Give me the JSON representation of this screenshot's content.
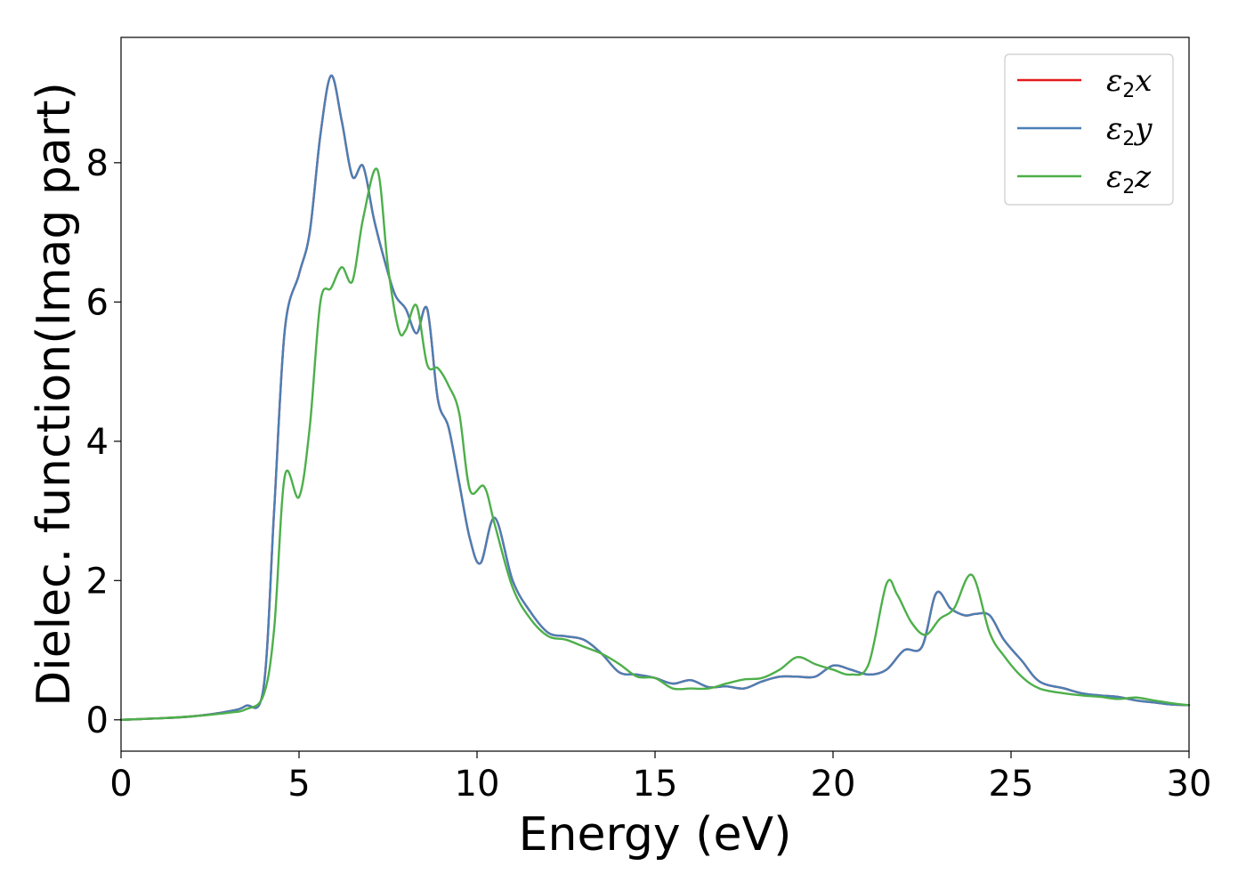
{
  "chart_data": {
    "type": "line",
    "title": "",
    "xlabel": "Energy (eV)",
    "ylabel": "Dielec. function(Imag part)",
    "xlim": [
      0,
      30
    ],
    "ylim": [
      -0.45,
      9.8
    ],
    "xticks": [
      0,
      5,
      10,
      15,
      20,
      25,
      30
    ],
    "yticks": [
      0,
      2,
      4,
      6,
      8
    ],
    "grid": false,
    "legend_position": "top-right",
    "series": [
      {
        "name": "ε2x",
        "name_base": "ε",
        "name_sub": "2",
        "name_var": "x",
        "color": "#e41a1c",
        "x": [
          0,
          1,
          2,
          3,
          3.5,
          4,
          4.3,
          4.6,
          5,
          5.3,
          5.6,
          5.9,
          6.2,
          6.5,
          6.8,
          7.1,
          7.4,
          7.7,
          8,
          8.3,
          8.6,
          8.9,
          9.2,
          9.5,
          9.8,
          10.1,
          10.5,
          11,
          11.5,
          12,
          12.5,
          13,
          13.5,
          14,
          14.5,
          15,
          15.5,
          16,
          16.5,
          17,
          17.5,
          18,
          18.5,
          19,
          19.5,
          20,
          20.5,
          21,
          21.5,
          22,
          22.5,
          22.9,
          23.3,
          23.7,
          24,
          24.4,
          24.8,
          25.3,
          25.8,
          26.5,
          27,
          27.5,
          28,
          28.5,
          29,
          29.5,
          30
        ],
        "y": [
          0,
          0.02,
          0.05,
          0.12,
          0.2,
          0.45,
          3.0,
          5.6,
          6.4,
          7.0,
          8.4,
          9.25,
          8.6,
          7.8,
          7.95,
          7.2,
          6.6,
          6.1,
          5.9,
          5.55,
          5.9,
          4.6,
          4.2,
          3.4,
          2.6,
          2.25,
          2.9,
          2.0,
          1.55,
          1.25,
          1.2,
          1.15,
          0.95,
          0.68,
          0.65,
          0.6,
          0.52,
          0.57,
          0.47,
          0.48,
          0.45,
          0.55,
          0.62,
          0.62,
          0.62,
          0.78,
          0.72,
          0.65,
          0.72,
          1.0,
          1.05,
          1.82,
          1.6,
          1.5,
          1.52,
          1.5,
          1.15,
          0.85,
          0.55,
          0.45,
          0.38,
          0.35,
          0.33,
          0.28,
          0.25,
          0.22,
          0.21
        ]
      },
      {
        "name": "ε2y",
        "name_base": "ε",
        "name_sub": "2",
        "name_var": "y",
        "color": "#4a7fb5",
        "x": [
          0,
          1,
          2,
          3,
          3.5,
          4,
          4.3,
          4.6,
          5,
          5.3,
          5.6,
          5.9,
          6.2,
          6.5,
          6.8,
          7.1,
          7.4,
          7.7,
          8,
          8.3,
          8.6,
          8.9,
          9.2,
          9.5,
          9.8,
          10.1,
          10.5,
          11,
          11.5,
          12,
          12.5,
          13,
          13.5,
          14,
          14.5,
          15,
          15.5,
          16,
          16.5,
          17,
          17.5,
          18,
          18.5,
          19,
          19.5,
          20,
          20.5,
          21,
          21.5,
          22,
          22.5,
          22.9,
          23.3,
          23.7,
          24,
          24.4,
          24.8,
          25.3,
          25.8,
          26.5,
          27,
          27.5,
          28,
          28.5,
          29,
          29.5,
          30
        ],
        "y": [
          0,
          0.02,
          0.05,
          0.12,
          0.2,
          0.45,
          3.0,
          5.6,
          6.4,
          7.0,
          8.4,
          9.25,
          8.6,
          7.8,
          7.95,
          7.2,
          6.6,
          6.1,
          5.9,
          5.55,
          5.9,
          4.6,
          4.2,
          3.4,
          2.6,
          2.25,
          2.9,
          2.0,
          1.55,
          1.25,
          1.2,
          1.15,
          0.95,
          0.68,
          0.65,
          0.6,
          0.52,
          0.57,
          0.47,
          0.48,
          0.45,
          0.55,
          0.62,
          0.62,
          0.62,
          0.78,
          0.72,
          0.65,
          0.72,
          1.0,
          1.05,
          1.82,
          1.6,
          1.5,
          1.52,
          1.5,
          1.15,
          0.85,
          0.55,
          0.45,
          0.38,
          0.35,
          0.33,
          0.28,
          0.25,
          0.22,
          0.21
        ]
      },
      {
        "name": "ε2z",
        "name_base": "ε",
        "name_sub": "2",
        "name_var": "z",
        "color": "#4daf4a",
        "x": [
          0,
          1,
          2,
          3,
          3.5,
          4,
          4.3,
          4.6,
          5,
          5.3,
          5.6,
          5.9,
          6.2,
          6.5,
          6.8,
          7.2,
          7.5,
          7.8,
          8,
          8.3,
          8.6,
          8.9,
          9.2,
          9.5,
          9.8,
          10.2,
          10.5,
          11,
          11.5,
          12,
          12.5,
          13,
          13.5,
          14,
          14.5,
          15,
          15.5,
          16,
          16.5,
          17,
          17.5,
          18,
          18.5,
          19,
          19.5,
          20,
          20.5,
          21,
          21.5,
          21.8,
          22.2,
          22.6,
          23,
          23.4,
          23.9,
          24.4,
          24.8,
          25.3,
          25.8,
          26.5,
          27,
          27.5,
          28,
          28.5,
          29,
          29.5,
          30
        ],
        "y": [
          0,
          0.02,
          0.05,
          0.1,
          0.15,
          0.35,
          1.3,
          3.5,
          3.2,
          4.2,
          6.0,
          6.2,
          6.5,
          6.3,
          7.2,
          7.9,
          6.5,
          5.6,
          5.6,
          5.95,
          5.1,
          5.05,
          4.8,
          4.4,
          3.3,
          3.35,
          2.8,
          1.9,
          1.45,
          1.2,
          1.15,
          1.05,
          0.95,
          0.8,
          0.62,
          0.6,
          0.45,
          0.45,
          0.45,
          0.52,
          0.58,
          0.6,
          0.72,
          0.9,
          0.8,
          0.72,
          0.65,
          0.8,
          1.95,
          1.8,
          1.4,
          1.22,
          1.45,
          1.6,
          2.08,
          1.25,
          0.92,
          0.62,
          0.45,
          0.38,
          0.35,
          0.33,
          0.3,
          0.32,
          0.28,
          0.24,
          0.21
        ]
      }
    ]
  }
}
